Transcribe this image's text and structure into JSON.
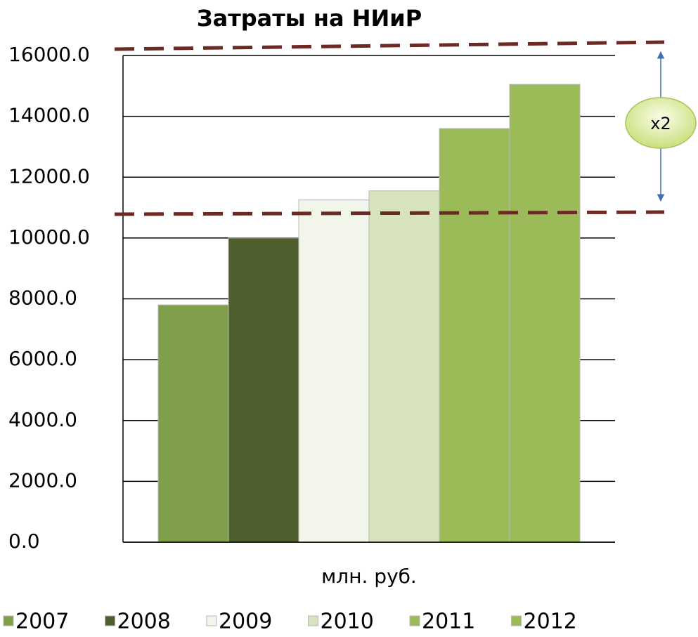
{
  "chart_data": {
    "type": "bar",
    "title": "Затраты на НИиР",
    "categories": [
      "млн. руб."
    ],
    "series": [
      {
        "name": "2007",
        "color": "#7f9f4a",
        "values": [
          7800
        ]
      },
      {
        "name": "2008",
        "color": "#4f602e",
        "values": [
          10000
        ]
      },
      {
        "name": "2009",
        "color": "#f2f5e9",
        "values": [
          11250
        ]
      },
      {
        "name": "2010",
        "color": "#d6e3bc",
        "values": [
          11550
        ]
      },
      {
        "name": "2011",
        "color": "#9bbb59",
        "values": [
          13600
        ]
      },
      {
        "name": "2012",
        "color": "#9bbb59",
        "values": [
          15050
        ]
      }
    ],
    "ylim": [
      0,
      16000
    ],
    "yticks": [
      {
        "value": 0,
        "label": "0.0"
      },
      {
        "value": 2000,
        "label": "2000.0"
      },
      {
        "value": 4000,
        "label": "4000.0"
      },
      {
        "value": 6000,
        "label": "6000.0"
      },
      {
        "value": 8000,
        "label": "8000.0"
      },
      {
        "value": 10000,
        "label": "10000.0"
      },
      {
        "value": 12000,
        "label": "12000.0"
      },
      {
        "value": 14000,
        "label": "14000.0"
      },
      {
        "value": 16000,
        "label": "16000.0"
      }
    ],
    "grid": true,
    "annotation": "x2"
  }
}
